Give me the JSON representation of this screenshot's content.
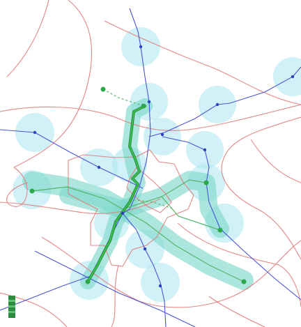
{
  "map": {
    "background": "#ffffff",
    "colors": {
      "catchment_fill": "#a9e6f0",
      "corridor_fill": "#7fd9cc",
      "route_highlight": "#35c24f",
      "route_dark": "#2f8a3f",
      "station_node": "#2aa84a",
      "blue_line": "#4a55d6",
      "blue_node": "#2f3fbf",
      "road_line": "#e07a7a",
      "thin_green": "#56b56a",
      "legend_green": "#2f8a3f"
    },
    "layers": [
      "catchment-circles",
      "corridor-bands",
      "road-network",
      "blue-transit-lines",
      "green-transit-lines",
      "highlighted-route",
      "station-nodes"
    ]
  }
}
